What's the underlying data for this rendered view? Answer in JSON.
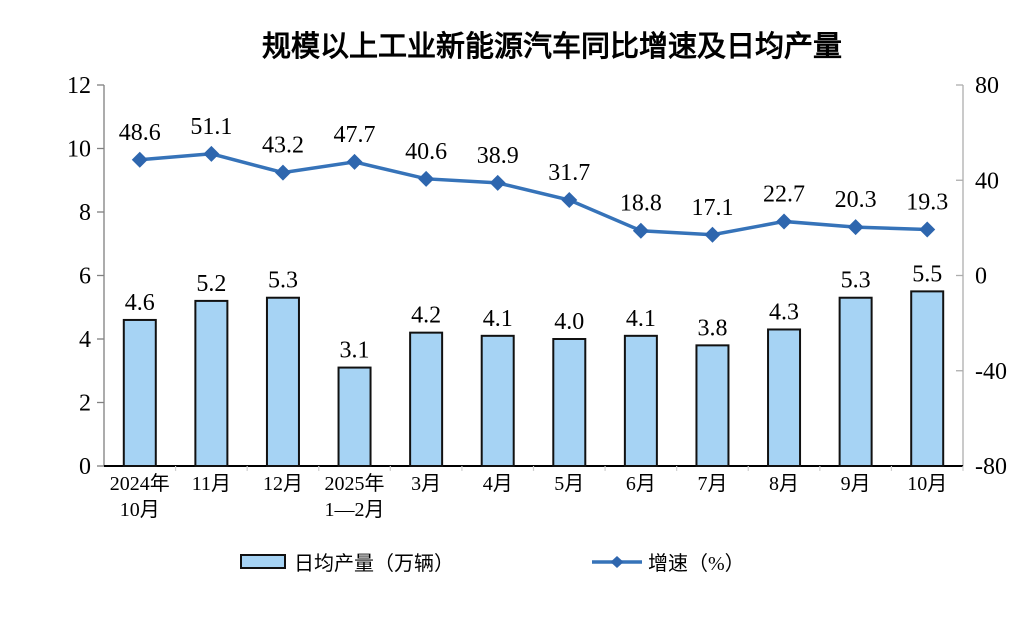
{
  "chart_data": {
    "type": "combo-bar-line",
    "title": "规模以上工业新能源汽车同比增速及日均产量",
    "categories": [
      "2024年\n10月",
      "11月",
      "12月",
      "2025年\n1—2月",
      "3月",
      "4月",
      "5月",
      "6月",
      "7月",
      "8月",
      "9月",
      "10月"
    ],
    "series": [
      {
        "name": "日均产量（万辆）",
        "type": "bar",
        "axis": "left",
        "values": [
          4.6,
          5.2,
          5.3,
          3.1,
          4.2,
          4.1,
          4.0,
          4.1,
          3.8,
          4.3,
          5.3,
          5.5
        ]
      },
      {
        "name": "增速（%）",
        "type": "line",
        "axis": "right",
        "values": [
          48.6,
          51.1,
          43.2,
          47.7,
          40.6,
          38.9,
          31.7,
          18.8,
          17.1,
          22.7,
          20.3,
          19.3
        ]
      }
    ],
    "left_axis": {
      "min": 0,
      "max": 12,
      "step": 2,
      "ticks": [
        "0",
        "2",
        "4",
        "6",
        "8",
        "10",
        "12"
      ]
    },
    "right_axis": {
      "min": -80,
      "max": 80,
      "step": 40,
      "ticks": [
        "-80",
        "-40",
        "0",
        "40",
        "80"
      ]
    },
    "grid": false,
    "legend_position": "bottom",
    "colors": {
      "bar_fill": "#A6D3F4",
      "bar_border": "#111111",
      "line": "#3673B9",
      "marker": "#2E66AE",
      "text": "#000000",
      "left_axis_line": "#808080",
      "right_axis_line": "#ADADAD",
      "bottom_axis_line": "#000000",
      "boundary_tick": "#D0D0D0"
    }
  }
}
